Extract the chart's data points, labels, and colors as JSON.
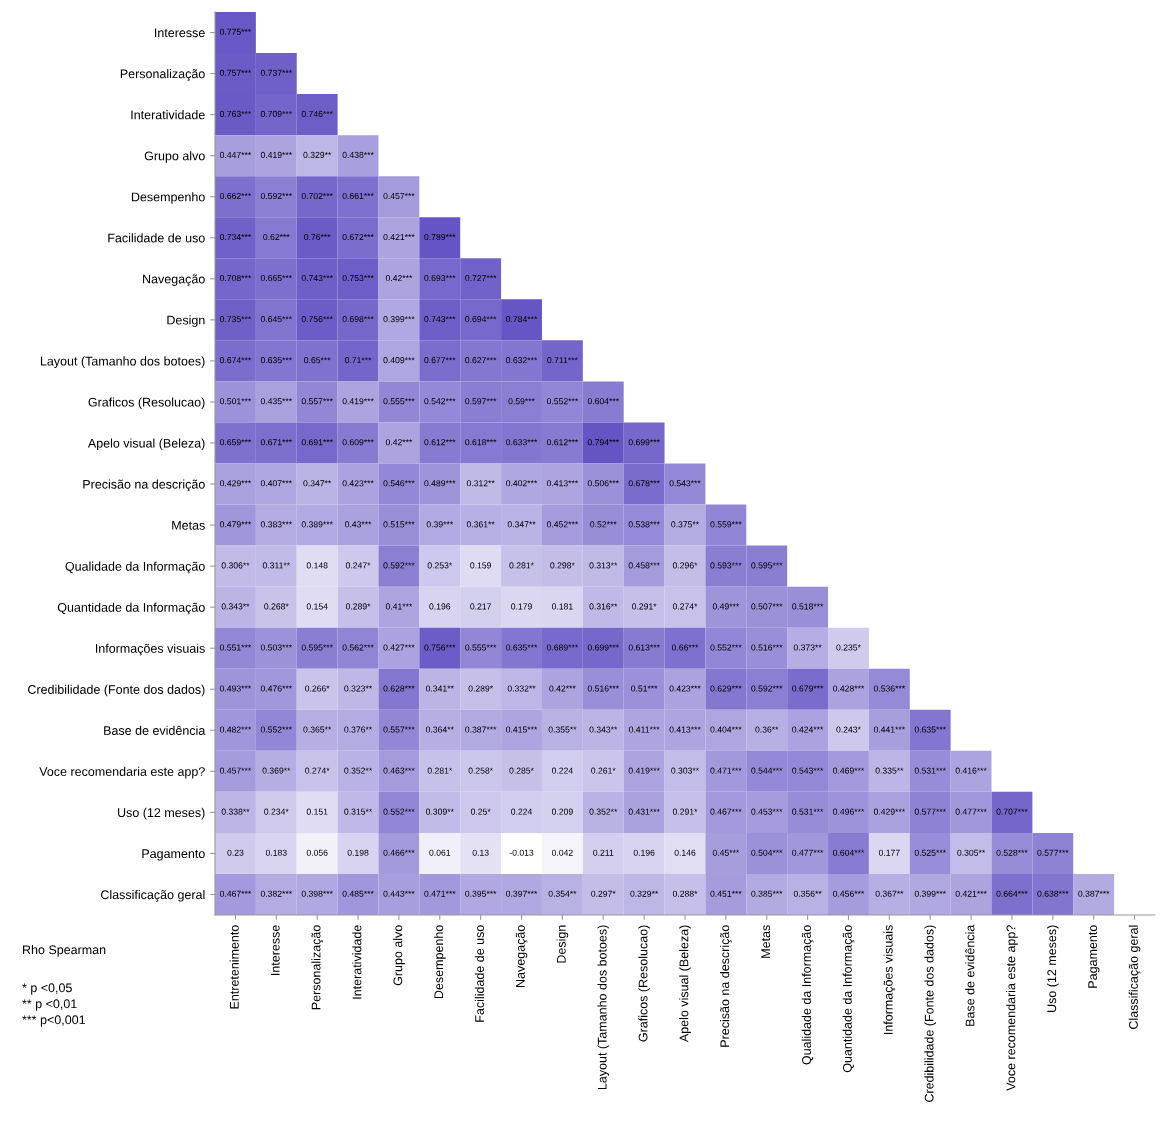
{
  "chart_data": {
    "type": "heatmap",
    "categories": [
      "Entretenimento",
      "Interesse",
      "Personalização",
      "Interatividade",
      "Grupo alvo",
      "Desempenho",
      "Facilidade de uso",
      "Navegação",
      "Design",
      "Layout (Tamanho dos botoes)",
      "Graficos (Resolucao)",
      "Apelo visual (Beleza)",
      "Precisão na descrição",
      "Metas",
      "Qualidade da Informação",
      "Quantidade da Informação",
      "Informações visuais",
      "Credibilidade (Fonte dos dados)",
      "Base de evidência",
      "Voce recomendaria este app?",
      "Uso (12 meses)",
      "Pagamento",
      "Classificação geral"
    ],
    "y_categories": [
      "Interesse",
      "Personalização",
      "Interatividade",
      "Grupo alvo",
      "Desempenho",
      "Facilidade de uso",
      "Navegação",
      "Design",
      "Layout (Tamanho dos botoes)",
      "Graficos (Resolucao)",
      "Apelo visual (Beleza)",
      "Precisão na descrição",
      "Metas",
      "Qualidade da Informação",
      "Quantidade da Informação",
      "Informações visuais",
      "Credibilidade (Fonte dos dados)",
      "Base de evidência",
      "Voce recomendaria este app?",
      "Uso (12 meses)",
      "Pagamento",
      "Classificação geral"
    ],
    "colors": [
      "#ffffff",
      "#6454c4"
    ],
    "cells": [
      [
        0.775,
        null,
        null,
        null,
        null,
        null,
        null,
        null,
        null,
        null,
        null,
        null,
        null,
        null,
        null,
        null,
        null,
        null,
        null,
        null,
        null,
        null,
        null
      ],
      [
        0.757,
        0.737,
        null,
        null,
        null,
        null,
        null,
        null,
        null,
        null,
        null,
        null,
        null,
        null,
        null,
        null,
        null,
        null,
        null,
        null,
        null,
        null,
        null
      ],
      [
        0.763,
        0.709,
        0.746,
        null,
        null,
        null,
        null,
        null,
        null,
        null,
        null,
        null,
        null,
        null,
        null,
        null,
        null,
        null,
        null,
        null,
        null,
        null,
        null
      ],
      [
        0.447,
        0.419,
        0.329,
        0.438,
        null,
        null,
        null,
        null,
        null,
        null,
        null,
        null,
        null,
        null,
        null,
        null,
        null,
        null,
        null,
        null,
        null,
        null,
        null
      ],
      [
        0.662,
        0.592,
        0.702,
        0.661,
        0.457,
        null,
        null,
        null,
        null,
        null,
        null,
        null,
        null,
        null,
        null,
        null,
        null,
        null,
        null,
        null,
        null,
        null,
        null
      ],
      [
        0.734,
        0.62,
        0.76,
        0.672,
        0.421,
        0.789,
        null,
        null,
        null,
        null,
        null,
        null,
        null,
        null,
        null,
        null,
        null,
        null,
        null,
        null,
        null,
        null,
        null
      ],
      [
        0.708,
        0.665,
        0.743,
        0.753,
        0.42,
        0.693,
        0.727,
        null,
        null,
        null,
        null,
        null,
        null,
        null,
        null,
        null,
        null,
        null,
        null,
        null,
        null,
        null,
        null
      ],
      [
        0.735,
        0.645,
        0.756,
        0.698,
        0.399,
        0.743,
        0.694,
        0.784,
        null,
        null,
        null,
        null,
        null,
        null,
        null,
        null,
        null,
        null,
        null,
        null,
        null,
        null,
        null
      ],
      [
        0.674,
        0.635,
        0.65,
        0.71,
        0.409,
        0.677,
        0.627,
        0.632,
        0.711,
        null,
        null,
        null,
        null,
        null,
        null,
        null,
        null,
        null,
        null,
        null,
        null,
        null,
        null
      ],
      [
        0.501,
        0.435,
        0.557,
        0.419,
        0.555,
        0.542,
        0.597,
        0.59,
        0.552,
        0.604,
        null,
        null,
        null,
        null,
        null,
        null,
        null,
        null,
        null,
        null,
        null,
        null,
        null
      ],
      [
        0.659,
        0.671,
        0.691,
        0.609,
        0.42,
        0.612,
        0.618,
        0.633,
        0.612,
        0.794,
        0.699,
        null,
        null,
        null,
        null,
        null,
        null,
        null,
        null,
        null,
        null,
        null,
        null
      ],
      [
        0.429,
        0.407,
        0.347,
        0.423,
        0.546,
        0.489,
        0.312,
        0.402,
        0.413,
        0.506,
        0.678,
        0.543,
        null,
        null,
        null,
        null,
        null,
        null,
        null,
        null,
        null,
        null,
        null
      ],
      [
        0.479,
        0.383,
        0.389,
        0.43,
        0.515,
        0.39,
        0.361,
        0.347,
        0.452,
        0.52,
        0.538,
        0.375,
        0.559,
        null,
        null,
        null,
        null,
        null,
        null,
        null,
        null,
        null,
        null
      ],
      [
        0.306,
        0.311,
        0.148,
        0.247,
        0.592,
        0.253,
        0.159,
        0.281,
        0.298,
        0.313,
        0.458,
        0.296,
        0.593,
        0.595,
        null,
        null,
        null,
        null,
        null,
        null,
        null,
        null,
        null
      ],
      [
        0.343,
        0.268,
        0.154,
        0.289,
        0.41,
        0.196,
        0.217,
        0.179,
        0.181,
        0.316,
        0.291,
        0.274,
        0.49,
        0.507,
        0.518,
        null,
        null,
        null,
        null,
        null,
        null,
        null,
        null
      ],
      [
        0.551,
        0.503,
        0.595,
        0.562,
        0.427,
        0.756,
        0.555,
        0.635,
        0.689,
        0.699,
        0.613,
        0.66,
        0.552,
        0.516,
        0.373,
        0.235,
        null,
        null,
        null,
        null,
        null,
        null,
        null
      ],
      [
        0.493,
        0.476,
        0.266,
        0.323,
        0.628,
        0.341,
        0.289,
        0.332,
        0.42,
        0.516,
        0.51,
        0.423,
        0.629,
        0.592,
        0.679,
        0.428,
        0.536,
        null,
        null,
        null,
        null,
        null,
        null
      ],
      [
        0.482,
        0.552,
        0.365,
        0.376,
        0.557,
        0.364,
        0.387,
        0.415,
        0.355,
        0.343,
        0.411,
        0.413,
        0.404,
        0.36,
        0.424,
        0.243,
        0.441,
        0.635,
        null,
        null,
        null,
        null,
        null
      ],
      [
        0.457,
        0.369,
        0.274,
        0.352,
        0.463,
        0.281,
        0.258,
        0.285,
        0.224,
        0.261,
        0.419,
        0.303,
        0.471,
        0.544,
        0.543,
        0.469,
        0.335,
        0.531,
        0.416,
        null,
        null,
        null,
        null
      ],
      [
        0.338,
        0.234,
        0.151,
        0.315,
        0.552,
        0.309,
        0.25,
        0.224,
        0.209,
        0.352,
        0.431,
        0.291,
        0.467,
        0.453,
        0.531,
        0.496,
        0.429,
        0.577,
        0.477,
        0.707,
        null,
        null,
        null
      ],
      [
        0.23,
        0.183,
        0.056,
        0.198,
        0.466,
        0.061,
        0.13,
        -0.013,
        0.042,
        0.211,
        0.196,
        0.146,
        0.45,
        0.504,
        0.477,
        0.604,
        0.177,
        0.525,
        0.305,
        0.528,
        0.577,
        null,
        null
      ],
      [
        0.467,
        0.382,
        0.398,
        0.485,
        0.443,
        0.471,
        0.395,
        0.397,
        0.354,
        0.297,
        0.329,
        0.288,
        0.451,
        0.385,
        0.356,
        0.456,
        0.367,
        0.399,
        0.421,
        0.664,
        0.638,
        0.387,
        null
      ]
    ],
    "cell_labels": [
      [
        "0.775***",
        null,
        null,
        null,
        null,
        null,
        null,
        null,
        null,
        null,
        null,
        null,
        null,
        null,
        null,
        null,
        null,
        null,
        null,
        null,
        null,
        null,
        null
      ],
      [
        "0.757***",
        "0.737***",
        null,
        null,
        null,
        null,
        null,
        null,
        null,
        null,
        null,
        null,
        null,
        null,
        null,
        null,
        null,
        null,
        null,
        null,
        null,
        null,
        null
      ],
      [
        "0.763***",
        "0.709***",
        "0.746***",
        null,
        null,
        null,
        null,
        null,
        null,
        null,
        null,
        null,
        null,
        null,
        null,
        null,
        null,
        null,
        null,
        null,
        null,
        null,
        null
      ],
      [
        "0.447***",
        "0.419***",
        "0.329**",
        "0.438***",
        null,
        null,
        null,
        null,
        null,
        null,
        null,
        null,
        null,
        null,
        null,
        null,
        null,
        null,
        null,
        null,
        null,
        null,
        null
      ],
      [
        "0.662***",
        "0.592***",
        "0.702***",
        "0.661***",
        "0.457***",
        null,
        null,
        null,
        null,
        null,
        null,
        null,
        null,
        null,
        null,
        null,
        null,
        null,
        null,
        null,
        null,
        null,
        null
      ],
      [
        "0.734***",
        "0.62***",
        "0.76***",
        "0.672***",
        "0.421***",
        "0.789***",
        null,
        null,
        null,
        null,
        null,
        null,
        null,
        null,
        null,
        null,
        null,
        null,
        null,
        null,
        null,
        null,
        null
      ],
      [
        "0.708***",
        "0.665***",
        "0.743***",
        "0.753***",
        "0.42***",
        "0.693***",
        "0.727***",
        null,
        null,
        null,
        null,
        null,
        null,
        null,
        null,
        null,
        null,
        null,
        null,
        null,
        null,
        null,
        null
      ],
      [
        "0.735***",
        "0.645***",
        "0.756***",
        "0.698***",
        "0.399***",
        "0.743***",
        "0.694***",
        "0.784***",
        null,
        null,
        null,
        null,
        null,
        null,
        null,
        null,
        null,
        null,
        null,
        null,
        null,
        null,
        null
      ],
      [
        "0.674***",
        "0.635***",
        "0.65***",
        "0.71***",
        "0.409***",
        "0.677***",
        "0.627***",
        "0.632***",
        "0.711***",
        null,
        null,
        null,
        null,
        null,
        null,
        null,
        null,
        null,
        null,
        null,
        null,
        null,
        null
      ],
      [
        "0.501***",
        "0.435***",
        "0.557***",
        "0.419***",
        "0.555***",
        "0.542***",
        "0.597***",
        "0.59***",
        "0.552***",
        "0.604***",
        null,
        null,
        null,
        null,
        null,
        null,
        null,
        null,
        null,
        null,
        null,
        null,
        null
      ],
      [
        "0.659***",
        "0.671***",
        "0.691***",
        "0.609***",
        "0.42***",
        "0.612***",
        "0.618***",
        "0.633***",
        "0.612***",
        "0.794***",
        "0.699***",
        null,
        null,
        null,
        null,
        null,
        null,
        null,
        null,
        null,
        null,
        null,
        null
      ],
      [
        "0.429***",
        "0.407***",
        "0.347**",
        "0.423***",
        "0.546***",
        "0.489***",
        "0.312**",
        "0.402***",
        "0.413***",
        "0.506***",
        "0.678***",
        "0.543***",
        null,
        null,
        null,
        null,
        null,
        null,
        null,
        null,
        null,
        null,
        null
      ],
      [
        "0.479***",
        "0.383***",
        "0.389***",
        "0.43***",
        "0.515***",
        "0.39***",
        "0.361**",
        "0.347**",
        "0.452***",
        "0.52***",
        "0.538***",
        "0.375**",
        "0.559***",
        null,
        null,
        null,
        null,
        null,
        null,
        null,
        null,
        null,
        null
      ],
      [
        "0.306**",
        "0.311**",
        "0.148",
        "0.247*",
        "0.592***",
        "0.253*",
        "0.159",
        "0.281*",
        "0.298*",
        "0.313**",
        "0.458***",
        "0.296*",
        "0.593***",
        "0.595***",
        null,
        null,
        null,
        null,
        null,
        null,
        null,
        null,
        null
      ],
      [
        "0.343**",
        "0.268*",
        "0.154",
        "0.289*",
        "0.41***",
        "0.196",
        "0.217",
        "0.179",
        "0.181",
        "0.316**",
        "0.291*",
        "0.274*",
        "0.49***",
        "0.507***",
        "0.518***",
        null,
        null,
        null,
        null,
        null,
        null,
        null,
        null
      ],
      [
        "0.551***",
        "0.503***",
        "0.595***",
        "0.562***",
        "0.427***",
        "0.756***",
        "0.555***",
        "0.635***",
        "0.689***",
        "0.699***",
        "0.613***",
        "0.66***",
        "0.552***",
        "0.516***",
        "0.373**",
        "0.235*",
        null,
        null,
        null,
        null,
        null,
        null,
        null
      ],
      [
        "0.493***",
        "0.476***",
        "0.266*",
        "0.323**",
        "0.628***",
        "0.341**",
        "0.289*",
        "0.332**",
        "0.42***",
        "0.516***",
        "0.51***",
        "0.423***",
        "0.629***",
        "0.592***",
        "0.679***",
        "0.428***",
        "0.536***",
        null,
        null,
        null,
        null,
        null,
        null
      ],
      [
        "0.482***",
        "0.552***",
        "0.365**",
        "0.376**",
        "0.557***",
        "0.364**",
        "0.387***",
        "0.415***",
        "0.355**",
        "0.343**",
        "0.411***",
        "0.413***",
        "0.404***",
        "0.36**",
        "0.424***",
        "0.243*",
        "0.441***",
        "0.635***",
        null,
        null,
        null,
        null,
        null
      ],
      [
        "0.457***",
        "0.369**",
        "0.274*",
        "0.352**",
        "0.463***",
        "0.281*",
        "0.258*",
        "0.285*",
        "0.224",
        "0.261*",
        "0.419***",
        "0.303**",
        "0.471***",
        "0.544***",
        "0.543***",
        "0.469***",
        "0.335**",
        "0.531***",
        "0.416***",
        null,
        null,
        null,
        null
      ],
      [
        "0.338**",
        "0.234*",
        "0.151",
        "0.315**",
        "0.552***",
        "0.309**",
        "0.25*",
        "0.224",
        "0.209",
        "0.352**",
        "0.431***",
        "0.291*",
        "0.467***",
        "0.453***",
        "0.531***",
        "0.496***",
        "0.429***",
        "0.577***",
        "0.477***",
        "0.707***",
        null,
        null,
        null
      ],
      [
        "0.23",
        "0.183",
        "0.056",
        "0.198",
        "0.466***",
        "0.061",
        "0.13",
        "-0.013",
        "0.042",
        "0.211",
        "0.196",
        "0.146",
        "0.45***",
        "0.504***",
        "0.477***",
        "0.604***",
        "0.177",
        "0.525***",
        "0.305**",
        "0.528***",
        "0.577***",
        null,
        null
      ],
      [
        "0.467***",
        "0.382***",
        "0.398***",
        "0.485***",
        "0.443***",
        "0.471***",
        "0.395***",
        "0.397***",
        "0.354**",
        "0.297*",
        "0.329**",
        "0.288*",
        "0.451***",
        "0.385***",
        "0.356**",
        "0.456***",
        "0.367**",
        "0.399***",
        "0.421***",
        "0.664***",
        "0.638***",
        "0.387***",
        null
      ]
    ],
    "annotations": [
      "Rho Spearman",
      "* p <0,05",
      "** p <0,01",
      "*** p<0,001"
    ]
  }
}
